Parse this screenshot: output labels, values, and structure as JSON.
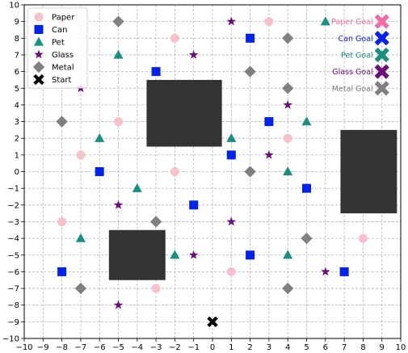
{
  "chart_data": {
    "type": "scatter",
    "title": "",
    "xlabel": "",
    "ylabel": "",
    "xlim": [
      -10,
      10
    ],
    "ylim": [
      -10,
      10
    ],
    "xticks": [
      -10,
      -9,
      -8,
      -7,
      -6,
      -5,
      -4,
      -3,
      -2,
      -1,
      0,
      1,
      2,
      3,
      4,
      5,
      6,
      7,
      8,
      9,
      10
    ],
    "yticks": [
      -10,
      -9,
      -8,
      -7,
      -6,
      -5,
      -4,
      -3,
      -2,
      -1,
      0,
      1,
      2,
      3,
      4,
      5,
      6,
      7,
      8,
      9,
      10
    ],
    "grid": true,
    "grid_style": "dashed",
    "legend_position": "top-left",
    "series": [
      {
        "name": "Paper",
        "marker": "circle",
        "color": "#f7c1cc",
        "points": [
          [
            -8,
            9
          ],
          [
            3,
            9
          ],
          [
            -2,
            8
          ],
          [
            -5,
            3
          ],
          [
            -7,
            1
          ],
          [
            4,
            2
          ],
          [
            -2,
            0
          ],
          [
            -8,
            -3
          ],
          [
            8,
            -4
          ],
          [
            1,
            -6
          ],
          [
            -3,
            -7
          ]
        ]
      },
      {
        "name": "Can",
        "marker": "square",
        "color": "#0022ee",
        "points": [
          [
            2,
            8
          ],
          [
            -3,
            6
          ],
          [
            3,
            3
          ],
          [
            1,
            1
          ],
          [
            -6,
            0
          ],
          [
            5,
            -1
          ],
          [
            -1,
            -2
          ],
          [
            2,
            -5
          ],
          [
            -8,
            -6
          ],
          [
            7,
            -6
          ]
        ]
      },
      {
        "name": "Pet",
        "marker": "triangle",
        "color": "#1a8f80",
        "points": [
          [
            6,
            9
          ],
          [
            -5,
            7
          ],
          [
            -6,
            2
          ],
          [
            1,
            2
          ],
          [
            5,
            3
          ],
          [
            4,
            0
          ],
          [
            -4,
            -1
          ],
          [
            -7,
            -4
          ],
          [
            -2,
            -5
          ],
          [
            4,
            -5
          ]
        ]
      },
      {
        "name": "Glass",
        "marker": "star",
        "color": "#6b0f7a",
        "points": [
          [
            1,
            9
          ],
          [
            -1,
            7
          ],
          [
            -7,
            5
          ],
          [
            4,
            4
          ],
          [
            3,
            1
          ],
          [
            -5,
            -2
          ],
          [
            1,
            -3
          ],
          [
            -1,
            -5
          ],
          [
            6,
            -6
          ],
          [
            -5,
            -8
          ]
        ]
      },
      {
        "name": "Metal",
        "marker": "diamond",
        "color": "#808080",
        "points": [
          [
            -5,
            9
          ],
          [
            4,
            8
          ],
          [
            2,
            6
          ],
          [
            4,
            5
          ],
          [
            -8,
            3
          ],
          [
            2,
            0
          ],
          [
            -3,
            -3
          ],
          [
            5,
            -4
          ],
          [
            -7,
            -7
          ],
          [
            4,
            -7
          ]
        ]
      },
      {
        "name": "Start",
        "marker": "x",
        "color": "#000000",
        "points": [
          [
            0,
            -9
          ]
        ]
      }
    ],
    "goals": [
      {
        "label": "Paper Goal",
        "x": 9,
        "y": 9,
        "color": "#ee6fa3"
      },
      {
        "label": "Can Goal",
        "x": 9,
        "y": 8,
        "color": "#0022ee"
      },
      {
        "label": "Pet Goal",
        "x": 9,
        "y": 7,
        "color": "#1a8f80"
      },
      {
        "label": "Glass Goal",
        "x": 9,
        "y": 6,
        "color": "#6b0f7a"
      },
      {
        "label": "Metal Goal",
        "x": 9,
        "y": 5,
        "color": "#808080"
      }
    ],
    "obstacles": [
      {
        "x0": -3.5,
        "x1": 0.5,
        "y0": 1.5,
        "y1": 5.5,
        "color": "#333333"
      },
      {
        "x0": 6.8,
        "x1": 9.8,
        "y0": -2.5,
        "y1": 2.5,
        "color": "#333333"
      },
      {
        "x0": -5.5,
        "x1": -2.5,
        "y0": -6.5,
        "y1": -3.5,
        "color": "#333333"
      }
    ]
  }
}
